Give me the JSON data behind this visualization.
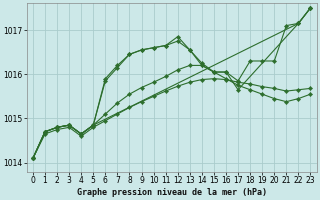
{
  "background_color": "#cce8e8",
  "grid_color": "#aacccc",
  "line_color": "#2d6e2d",
  "xlabel": "Graphe pression niveau de la mer (hPa)",
  "ylim": [
    1013.8,
    1017.6
  ],
  "xlim": [
    -0.5,
    23.5
  ],
  "yticks": [
    1014,
    1015,
    1016,
    1017
  ],
  "xticks": [
    0,
    1,
    2,
    3,
    4,
    5,
    6,
    7,
    8,
    9,
    10,
    11,
    12,
    13,
    14,
    15,
    16,
    17,
    18,
    19,
    20,
    21,
    22,
    23
  ],
  "lines": [
    {
      "x": [
        0,
        1,
        2,
        3,
        4,
        5,
        22,
        23
      ],
      "y": [
        1014.1,
        1014.7,
        1014.8,
        1014.85,
        1014.65,
        1014.85,
        1017.15,
        1017.5
      ]
    },
    {
      "x": [
        0,
        1,
        2,
        3,
        4,
        5,
        6,
        7,
        8,
        9,
        10,
        11,
        12,
        13,
        14,
        15,
        16,
        17,
        22,
        23
      ],
      "y": [
        1014.1,
        1014.7,
        1014.8,
        1014.85,
        1014.65,
        1014.85,
        1015.9,
        1016.2,
        1016.45,
        1016.55,
        1016.6,
        1016.65,
        1016.85,
        1016.55,
        1016.25,
        1016.05,
        1016.05,
        1015.65,
        1017.15,
        1017.5
      ]
    },
    {
      "x": [
        0,
        1,
        2,
        3,
        4,
        5,
        6,
        7,
        8,
        9,
        10,
        11,
        12,
        13,
        14,
        15,
        16,
        17,
        18,
        19,
        20,
        21,
        22,
        23
      ],
      "y": [
        1014.1,
        1014.7,
        1014.8,
        1014.85,
        1014.65,
        1014.85,
        1015.85,
        1016.15,
        1016.45,
        1016.55,
        1016.6,
        1016.65,
        1016.75,
        1016.55,
        1016.2,
        1016.05,
        1016.05,
        1015.85,
        1016.3,
        1016.3,
        1016.3,
        1017.1,
        1017.15,
        1017.5
      ]
    },
    {
      "x": [
        0,
        1,
        2,
        3,
        4,
        5,
        6,
        7,
        8,
        9,
        10,
        11,
        12,
        13,
        14,
        15,
        16,
        17,
        18,
        19,
        20,
        21,
        22,
        23
      ],
      "y": [
        1014.1,
        1014.7,
        1014.8,
        1014.85,
        1014.65,
        1014.85,
        1015.1,
        1015.35,
        1015.55,
        1015.7,
        1015.82,
        1015.95,
        1016.1,
        1016.2,
        1016.2,
        1016.05,
        1015.9,
        1015.75,
        1015.65,
        1015.55,
        1015.45,
        1015.38,
        1015.45,
        1015.55
      ]
    },
    {
      "x": [
        0,
        1,
        2,
        3,
        4,
        5,
        6,
        7,
        8,
        9,
        10,
        11,
        12,
        13,
        14,
        15,
        16,
        17,
        18,
        19,
        20,
        21,
        22,
        23
      ],
      "y": [
        1014.1,
        1014.65,
        1014.75,
        1014.8,
        1014.6,
        1014.8,
        1014.95,
        1015.1,
        1015.25,
        1015.38,
        1015.5,
        1015.62,
        1015.73,
        1015.82,
        1015.88,
        1015.9,
        1015.88,
        1015.82,
        1015.78,
        1015.72,
        1015.68,
        1015.62,
        1015.65,
        1015.68
      ]
    }
  ]
}
